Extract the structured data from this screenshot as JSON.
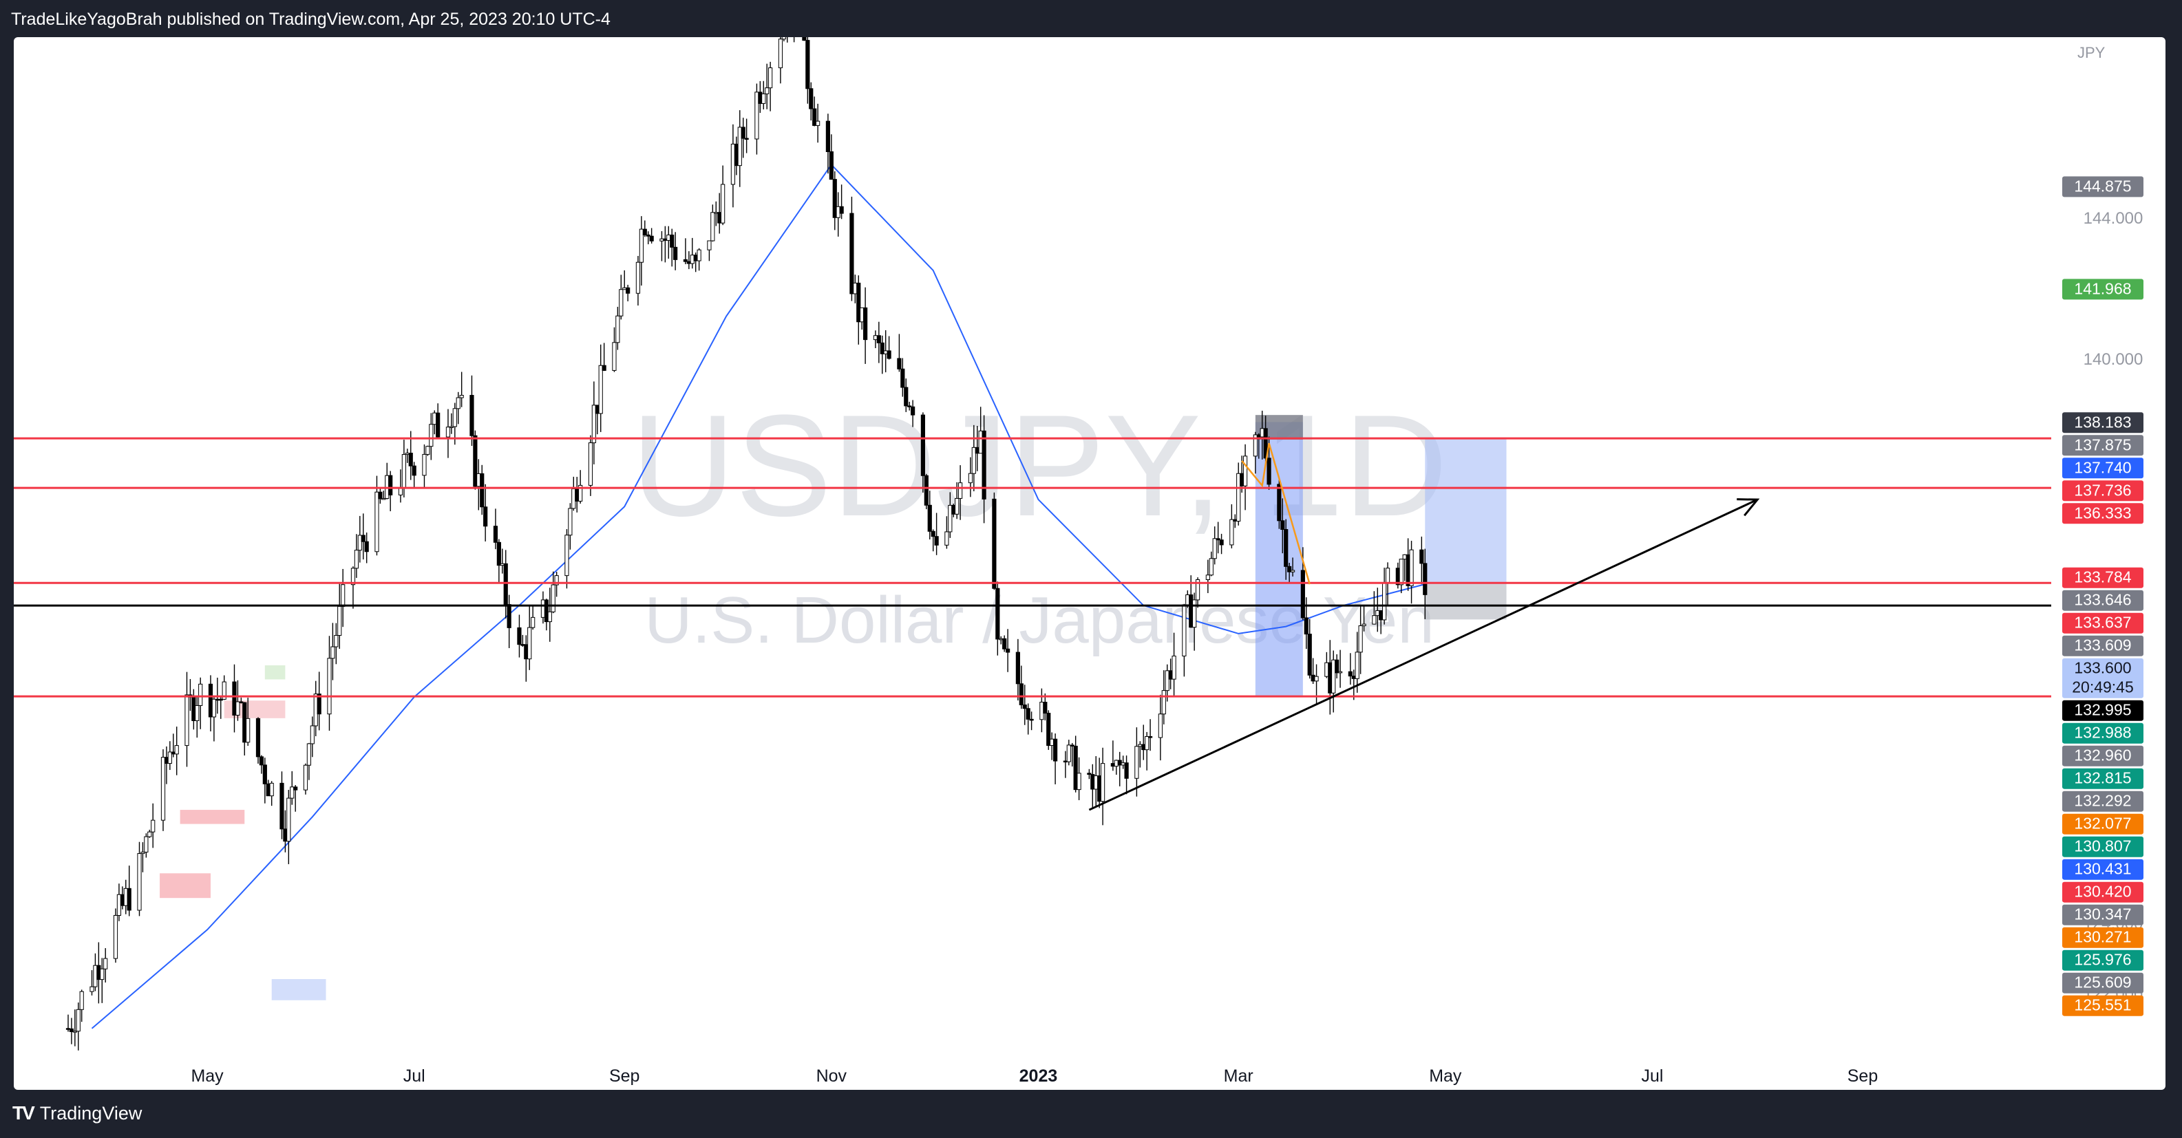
{
  "header": {
    "published_text": "TradeLikeYagoBrah published on TradingView.com, Apr 25, 2023 20:10 UTC-4"
  },
  "footer": {
    "brand": "TradingView",
    "logo_icon": "tradingview-logo-icon"
  },
  "colors": {
    "up_candle": "#ffffff",
    "candle_outline": "#000000",
    "ma_line": "#2962ff",
    "level_line": "#f23645",
    "support_line": "#000000",
    "watermark": "#d1d4dc",
    "highlight_blue": "#7e9bf5",
    "projection_blue": "#a7bdf7",
    "arrow_orange": "#f79a1c"
  },
  "chart_data": {
    "type": "candlestick",
    "symbol_watermark": "USDJPY, 1D",
    "description_watermark": "U.S. Dollar / Japanese Yen",
    "currency": "JPY",
    "x_ticks": [
      {
        "label": "May",
        "date": "2022-05-01"
      },
      {
        "label": "Jul",
        "date": "2022-07-01"
      },
      {
        "label": "Sep",
        "date": "2022-09-01"
      },
      {
        "label": "Nov",
        "date": "2022-11-01"
      },
      {
        "label": "2023",
        "date": "2023-01-01",
        "bold": true
      },
      {
        "label": "Mar",
        "date": "2023-03-01"
      },
      {
        "label": "May",
        "date": "2023-05-01"
      },
      {
        "label": "Jul",
        "date": "2023-07-01"
      },
      {
        "label": "Sep",
        "date": "2023-09-01"
      }
    ],
    "y_ticks": [
      "144.000",
      "140.000",
      "124.000",
      "122.000"
    ],
    "ylim": [
      120.0,
      149.0
    ],
    "price_labels": [
      {
        "value": "144.875",
        "color": "#787b86"
      },
      {
        "value": "141.968",
        "color": "#4caf50"
      },
      {
        "value": "138.183",
        "color": "#363a45"
      },
      {
        "value": "137.875",
        "color": "#787b86"
      },
      {
        "value": "137.740",
        "color": "#2962ff"
      },
      {
        "value": "137.736",
        "color": "#f23645"
      },
      {
        "value": "136.333",
        "color": "#f23645"
      },
      {
        "value": "133.784",
        "color": "#f23645"
      },
      {
        "value": "133.646",
        "color": "#787b86"
      },
      {
        "value": "133.637",
        "color": "#f23645"
      },
      {
        "value": "133.609",
        "color": "#787b86"
      },
      {
        "value": "133.600",
        "sub": "20:49:45",
        "color": "#b2c8fa",
        "dark_text": true
      },
      {
        "value": "132.995",
        "color": "#000000"
      },
      {
        "value": "132.988",
        "color": "#089981"
      },
      {
        "value": "132.960",
        "color": "#787b86"
      },
      {
        "value": "132.815",
        "color": "#089981"
      },
      {
        "value": "132.292",
        "color": "#787b86"
      },
      {
        "value": "132.077",
        "color": "#f57c00"
      },
      {
        "value": "130.807",
        "color": "#089981"
      },
      {
        "value": "130.431",
        "color": "#2962ff"
      },
      {
        "value": "130.420",
        "color": "#f23645"
      },
      {
        "value": "130.347",
        "color": "#787b86"
      },
      {
        "value": "130.271",
        "color": "#f57c00"
      },
      {
        "value": "125.976",
        "color": "#089981"
      },
      {
        "value": "125.609",
        "color": "#787b86"
      },
      {
        "value": "125.551",
        "color": "#f57c00"
      }
    ],
    "horizontal_levels": [
      {
        "price": 137.736,
        "color": "#f23645"
      },
      {
        "price": 136.333,
        "color": "#f23645"
      },
      {
        "price": 133.637,
        "color": "#f23645"
      },
      {
        "price": 132.995,
        "color": "#000000"
      },
      {
        "price": 130.42,
        "color": "#f23645"
      }
    ],
    "trendline": {
      "from": {
        "date": "2023-01-16",
        "price": 127.2
      },
      "to": {
        "date": "2023-08-01",
        "price": 136.0
      }
    },
    "close_samples": [
      {
        "date": "2022-03-21",
        "price": 121.0
      },
      {
        "date": "2022-04-11",
        "price": 125.5
      },
      {
        "date": "2022-04-20",
        "price": 128.9
      },
      {
        "date": "2022-04-28",
        "price": 130.5
      },
      {
        "date": "2022-05-09",
        "price": 130.3
      },
      {
        "date": "2022-05-24",
        "price": 126.9
      },
      {
        "date": "2022-06-02",
        "price": 130.0
      },
      {
        "date": "2022-06-14",
        "price": 134.5
      },
      {
        "date": "2022-06-22",
        "price": 136.0
      },
      {
        "date": "2022-07-14",
        "price": 138.9
      },
      {
        "date": "2022-08-01",
        "price": 131.6
      },
      {
        "date": "2022-08-10",
        "price": 133.0
      },
      {
        "date": "2022-08-19",
        "price": 137.0
      },
      {
        "date": "2022-09-07",
        "price": 144.0
      },
      {
        "date": "2022-09-22",
        "price": 142.5
      },
      {
        "date": "2022-10-20",
        "price": 150.2
      },
      {
        "date": "2022-11-10",
        "price": 140.9
      },
      {
        "date": "2022-11-25",
        "price": 138.8
      },
      {
        "date": "2022-12-02",
        "price": 134.3
      },
      {
        "date": "2022-12-15",
        "price": 137.7
      },
      {
        "date": "2022-12-20",
        "price": 131.7
      },
      {
        "date": "2023-01-16",
        "price": 127.7
      },
      {
        "date": "2023-02-01",
        "price": 128.9
      },
      {
        "date": "2023-02-13",
        "price": 132.5
      },
      {
        "date": "2023-03-08",
        "price": 137.8
      },
      {
        "date": "2023-03-24",
        "price": 130.7
      },
      {
        "date": "2023-04-04",
        "price": 131.5
      },
      {
        "date": "2023-04-18",
        "price": 134.3
      },
      {
        "date": "2023-04-25",
        "price": 133.6
      }
    ],
    "moving_average_samples": [
      {
        "date": "2022-03-28",
        "price": 121.0
      },
      {
        "date": "2022-05-01",
        "price": 123.8
      },
      {
        "date": "2022-06-01",
        "price": 127.0
      },
      {
        "date": "2022-07-01",
        "price": 130.4
      },
      {
        "date": "2022-08-01",
        "price": 133.0
      },
      {
        "date": "2022-09-01",
        "price": 135.8
      },
      {
        "date": "2022-10-01",
        "price": 141.2
      },
      {
        "date": "2022-11-01",
        "price": 145.5
      },
      {
        "date": "2022-12-01",
        "price": 142.5
      },
      {
        "date": "2023-01-01",
        "price": 136.0
      },
      {
        "date": "2023-02-01",
        "price": 133.0
      },
      {
        "date": "2023-03-01",
        "price": 132.2
      },
      {
        "date": "2023-03-15",
        "price": 132.4
      },
      {
        "date": "2023-04-01",
        "price": 133.0
      },
      {
        "date": "2023-04-25",
        "price": 133.6
      }
    ]
  }
}
